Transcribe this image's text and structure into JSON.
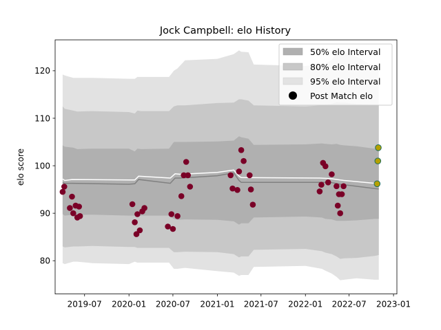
{
  "chart_data": {
    "type": "line",
    "title": "Jock Campbell: elo History",
    "xlabel": "",
    "ylabel": "elo score",
    "xlim": [
      "2019-03-01",
      "2023-01-15"
    ],
    "ylim": [
      73.0,
      126.5
    ],
    "yticks": [
      80,
      90,
      100,
      110,
      120
    ],
    "xticks": [
      {
        "date": "2019-07-01",
        "label": "2019-07"
      },
      {
        "date": "2020-01-01",
        "label": "2020-01"
      },
      {
        "date": "2020-07-01",
        "label": "2020-07"
      },
      {
        "date": "2021-01-01",
        "label": "2021-01"
      },
      {
        "date": "2021-07-01",
        "label": "2021-07"
      },
      {
        "date": "2022-01-01",
        "label": "2022-01"
      },
      {
        "date": "2022-07-01",
        "label": "2022-07"
      },
      {
        "date": "2023-01-01",
        "label": "2023-01"
      }
    ],
    "legend": {
      "placement": "top-right",
      "entries": [
        {
          "label": "50% elo Interval",
          "color": "#b0b0b0"
        },
        {
          "label": "80% elo Interval",
          "color": "#c8c8c8"
        },
        {
          "label": "95% elo Interval",
          "color": "#e2e2e2"
        },
        {
          "label": "Post Match elo",
          "color": "#000000"
        }
      ]
    },
    "colors": {
      "band95": "#e2e2e2",
      "band80": "#c8c8c8",
      "band50": "#b0b0b0",
      "median_line": "#808080",
      "mean_line": "#ffffff",
      "points": "#7a0027",
      "future_points": "#b5a000"
    },
    "bands": {
      "x": [
        "2019-04-01",
        "2019-04-10",
        "2019-05-15",
        "2019-06-01",
        "2019-08-01",
        "2020-01-01",
        "2020-01-25",
        "2020-02-05",
        "2020-02-20",
        "2020-06-15",
        "2020-07-05",
        "2020-07-20",
        "2020-08-20",
        "2021-01-01",
        "2021-03-10",
        "2021-04-01",
        "2021-04-10",
        "2021-05-10",
        "2021-06-01",
        "2022-01-01",
        "2022-03-10",
        "2022-03-25",
        "2022-04-20",
        "2022-05-10",
        "2022-05-25",
        "2022-06-10",
        "2022-08-01",
        "2022-10-15",
        "2022-11-01"
      ],
      "lo95": [
        79.5,
        79.3,
        79.8,
        79.8,
        79.5,
        79.3,
        79.8,
        79.6,
        79.6,
        79.6,
        78.3,
        78.3,
        78.5,
        77.8,
        77.5,
        76.8,
        77.0,
        77.0,
        78.7,
        78.9,
        78.3,
        77.9,
        77.3,
        76.6,
        75.9,
        76.0,
        76.3,
        76.0,
        76.0
      ],
      "lo80": [
        83.0,
        82.8,
        83.0,
        83.0,
        83.1,
        82.9,
        82.9,
        82.7,
        82.7,
        82.7,
        81.8,
        81.8,
        81.9,
        81.8,
        81.4,
        80.7,
        80.9,
        80.9,
        82.3,
        82.5,
        82.0,
        81.7,
        81.4,
        80.9,
        80.4,
        80.5,
        80.6,
        81.0,
        81.2
      ],
      "lo50": [
        89.8,
        89.5,
        89.7,
        89.6,
        89.7,
        89.5,
        89.5,
        89.3,
        89.5,
        89.5,
        88.8,
        88.6,
        88.7,
        88.6,
        88.3,
        87.6,
        87.9,
        87.9,
        89.1,
        89.3,
        89.1,
        88.8,
        88.7,
        88.4,
        88.4,
        88.4,
        88.5,
        88.8,
        88.8
      ],
      "hi50": [
        104.3,
        104.0,
        103.8,
        103.5,
        103.6,
        103.6,
        103.0,
        103.6,
        103.5,
        103.6,
        105.0,
        105.0,
        105.0,
        105.1,
        105.3,
        106.2,
        106.0,
        105.7,
        104.4,
        104.5,
        104.7,
        104.6,
        104.5,
        104.6,
        104.4,
        104.3,
        104.1,
        103.6,
        103.6
      ],
      "hi80": [
        112.5,
        112.0,
        111.6,
        111.4,
        111.5,
        111.3,
        111.0,
        111.6,
        111.5,
        111.5,
        112.5,
        112.7,
        112.7,
        113.2,
        113.3,
        114.0,
        114.0,
        113.7,
        112.7,
        112.5,
        112.7,
        112.9,
        113.0,
        113.4,
        113.3,
        113.3,
        113.0,
        112.8,
        112.8
      ],
      "hi95": [
        119.2,
        119.0,
        118.5,
        118.5,
        118.5,
        118.3,
        118.3,
        118.7,
        118.7,
        118.7,
        120.0,
        120.5,
        122.2,
        122.5,
        123.5,
        124.3,
        124.0,
        123.9,
        121.3,
        121.0,
        121.3,
        121.5,
        122.3,
        123.7,
        124.1,
        124.0,
        123.0,
        120.8,
        120.8
      ]
    },
    "series": [
      {
        "values_x": [
          "2019-04-01",
          "2019-04-10",
          "2019-05-10",
          "2020-01-01",
          "2020-01-25",
          "2020-02-10",
          "2020-06-20",
          "2020-07-10",
          "2020-08-01",
          "2021-01-01",
          "2021-03-10",
          "2021-04-01",
          "2021-04-10",
          "2022-03-01",
          "2022-04-15",
          "2022-05-25",
          "2022-06-10",
          "2022-10-15",
          "2022-11-01"
        ],
        "values_y": [
          96.4,
          96.3,
          96.3,
          96.1,
          96.2,
          97.1,
          96.3,
          97.4,
          97.4,
          97.9,
          98.5,
          96.9,
          96.5,
          96.5,
          96.5,
          96.1,
          96.0,
          95.2,
          95.1
        ]
      },
      {
        "values_x": [
          "2019-04-01",
          "2019-04-10",
          "2019-05-10",
          "2020-01-01",
          "2020-01-25",
          "2020-02-10",
          "2020-06-20",
          "2020-07-10",
          "2020-08-01",
          "2021-01-01",
          "2021-03-10",
          "2021-04-01",
          "2021-04-10",
          "2022-03-01",
          "2022-04-15",
          "2022-05-25",
          "2022-06-10",
          "2022-10-15",
          "2022-11-01"
        ],
        "values_y": [
          97.2,
          96.9,
          97.1,
          97.0,
          97.0,
          97.8,
          97.4,
          98.3,
          98.2,
          98.6,
          99.1,
          97.8,
          97.5,
          97.4,
          97.3,
          97.0,
          96.9,
          96.3,
          96.2
        ]
      },
      {
        "x": [
          "2019-04-01",
          "2019-04-08",
          "2019-05-01",
          "2019-05-10",
          "2019-05-15",
          "2019-05-25",
          "2019-06-01",
          "2019-06-08",
          "2019-06-12",
          "2020-01-15",
          "2020-01-25",
          "2020-02-01",
          "2020-02-05",
          "2020-02-15",
          "2020-02-25",
          "2020-03-05",
          "2020-06-10",
          "2020-06-25",
          "2020-07-01",
          "2020-07-20",
          "2020-08-05",
          "2020-08-15",
          "2020-08-25",
          "2020-09-01",
          "2020-09-10",
          "2021-02-25",
          "2021-03-05",
          "2021-03-25",
          "2021-04-01",
          "2021-04-10",
          "2021-04-20",
          "2021-05-15",
          "2021-05-20",
          "2021-05-28",
          "2022-03-01",
          "2022-03-08",
          "2022-03-15",
          "2022-03-25",
          "2022-04-05",
          "2022-04-20",
          "2022-05-10",
          "2022-05-15",
          "2022-05-20",
          "2022-05-25",
          "2022-06-01",
          "2022-06-08"
        ],
        "y": [
          94.5,
          95.6,
          91.1,
          93.5,
          90.0,
          91.6,
          89.1,
          91.4,
          89.4,
          91.9,
          88.1,
          85.6,
          89.8,
          86.4,
          90.4,
          91.1,
          87.2,
          89.8,
          86.7,
          89.4,
          93.6,
          98.0,
          100.8,
          98.0,
          95.6,
          98.0,
          95.2,
          94.9,
          98.8,
          103.3,
          101.0,
          98.0,
          95.0,
          91.8,
          94.6,
          96.0,
          100.6,
          99.9,
          96.5,
          98.2,
          95.7,
          91.6,
          94.0,
          90.0,
          94.0,
          95.7
        ]
      },
      {
        "x": [
          "2022-10-25",
          "2022-10-28",
          "2022-10-30"
        ],
        "y": [
          96.2,
          101.0,
          103.8
        ]
      }
    ]
  }
}
